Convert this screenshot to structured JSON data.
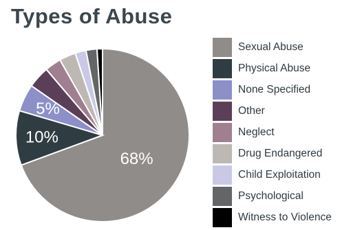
{
  "chart_data": {
    "type": "pie",
    "title": "Types of Abuse",
    "categories": [
      "Sexual Abuse",
      "Physical Abuse",
      "None Specified",
      "Other",
      "Neglect",
      "Drug Endangered",
      "Child Exploitation",
      "Psychological",
      "Witness to Violence"
    ],
    "values": [
      68,
      10,
      5,
      4,
      3,
      3,
      2,
      2,
      1
    ],
    "data_labels": [
      "68%",
      "10%",
      "5%",
      "",
      "",
      "",
      "",
      "",
      ""
    ],
    "colors": [
      "#908c89",
      "#2f3d42",
      "#8c8fc8",
      "#5b3f58",
      "#a07f90",
      "#bdb8b4",
      "#c9c9e6",
      "#646566",
      "#000000"
    ],
    "legend_position": "right",
    "start_angle_deg": 0,
    "direction": "clockwise"
  }
}
